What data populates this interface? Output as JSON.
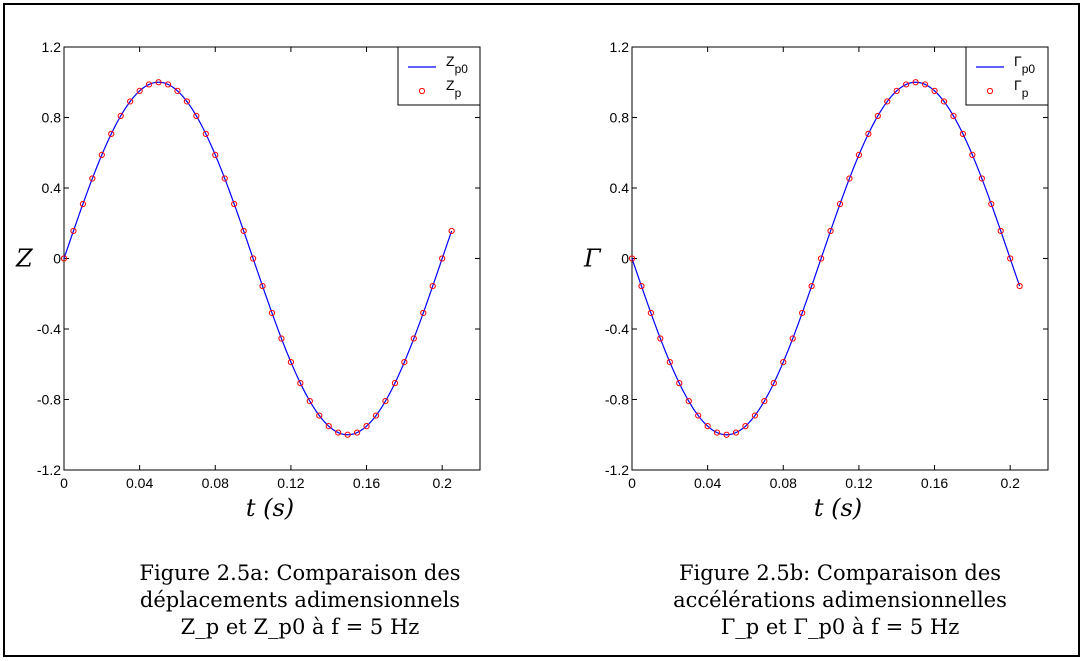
{
  "chart_data": [
    {
      "type": "line",
      "ylabel": "Z",
      "xlabel": "t (s)",
      "xlim": [
        0,
        0.22
      ],
      "ylim": [
        -1.2,
        1.2
      ],
      "xticks": [
        "0",
        "0.04",
        "0.08",
        "0.12",
        "0.16",
        "0.2"
      ],
      "yticks": [
        "-1.2",
        "-0.8",
        "-0.4",
        "0",
        "0.4",
        "0.8",
        "1.2"
      ],
      "legend_position": "top-right",
      "legend": [
        {
          "name": "Zp0",
          "main": "Z",
          "sub": "p0",
          "style": "line",
          "color": "#0000ff"
        },
        {
          "name": "Zp",
          "main": "Z",
          "sub": "p",
          "style": "marker",
          "color": "#ff0000"
        }
      ],
      "series": [
        {
          "name": "Zp0",
          "style": "line",
          "color": "#0000ff",
          "function": "sin(2*pi*5*t)",
          "t_range": [
            0,
            0.205
          ]
        },
        {
          "name": "Zp",
          "style": "marker",
          "color": "#ff0000",
          "function": "sin(2*pi*5*t)",
          "t_range": [
            0,
            0.205
          ],
          "t_step": 0.005
        }
      ],
      "caption": [
        "Figure 2.5a: Comparaison des",
        "déplacements adimensionnels",
        "Z_p  et  Z_p0  à  f = 5 Hz"
      ]
    },
    {
      "type": "line",
      "ylabel": "Γ",
      "xlabel": "t (s)",
      "xlim": [
        0,
        0.22
      ],
      "ylim": [
        -1.2,
        1.2
      ],
      "xticks": [
        "0",
        "0.04",
        "0.08",
        "0.12",
        "0.16",
        "0.2"
      ],
      "yticks": [
        "-1.2",
        "-0.8",
        "-0.4",
        "0",
        "0.4",
        "0.8",
        "1.2"
      ],
      "legend_position": "top-right",
      "legend": [
        {
          "name": "Γp0",
          "main": "Γ",
          "sub": "p0",
          "style": "line",
          "color": "#0000ff"
        },
        {
          "name": "Γp",
          "main": "Γ",
          "sub": "p",
          "style": "marker",
          "color": "#ff0000"
        }
      ],
      "series": [
        {
          "name": "Γp0",
          "style": "line",
          "color": "#0000ff",
          "function": "-sin(2*pi*5*t)",
          "t_range": [
            0,
            0.205
          ]
        },
        {
          "name": "Γp",
          "style": "marker",
          "color": "#ff0000",
          "function": "-sin(2*pi*5*t)",
          "t_range": [
            0,
            0.205
          ],
          "t_step": 0.005
        }
      ],
      "caption": [
        "Figure 2.5b: Comparaison des",
        "accélérations adimensionnelles",
        "Γ_p  et  Γ_p0  à   f = 5 Hz"
      ]
    }
  ],
  "captions": {
    "a": {
      "line1": "Figure 2.5a: Comparaison des",
      "line2": "déplacements adimensionnels",
      "line3": "Z_p  et  Z_p0  à  f = 5 Hz"
    },
    "b": {
      "line1": "Figure 2.5b: Comparaison des",
      "line2": "accélérations adimensionnelles",
      "line3": "Γ_p  et  Γ_p0  à   f = 5 Hz"
    }
  }
}
